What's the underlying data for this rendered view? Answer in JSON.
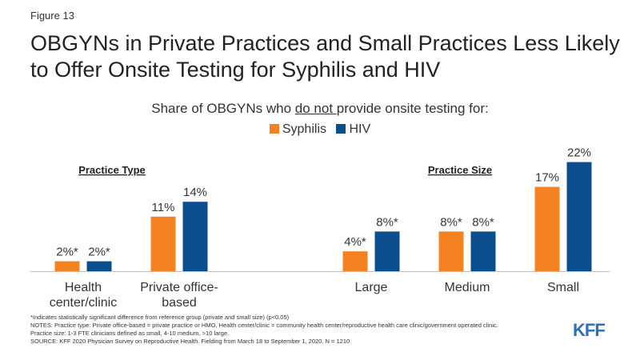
{
  "figure_label": "Figure 13",
  "title": "OBGYNs in Private Practices and Small Practices Less Likely to Offer Onsite Testing for Syphilis and HIV",
  "subtitle": {
    "before": "Share of OBGYNs who ",
    "underlined": "do not ",
    "after": "provide onsite testing for:"
  },
  "colors": {
    "syphilis": "#F58220",
    "hiv": "#0B4E8E"
  },
  "chart_data": {
    "type": "bar",
    "title": "",
    "xlabel": "",
    "ylabel": "",
    "ylim": [
      0,
      25
    ],
    "legend": "top-center",
    "grid": false,
    "groups": [
      {
        "name": "Practice Type",
        "categories": [
          "Health center/clinic",
          "Private office-based"
        ]
      },
      {
        "name": "Practice Size",
        "categories": [
          "Large",
          "Medium",
          "Small"
        ]
      }
    ],
    "categories": [
      "Health center/clinic",
      "Private office-based",
      "Large",
      "Medium",
      "Small"
    ],
    "category_lines": [
      [
        "Health",
        "center/clinic"
      ],
      [
        "Private office-",
        "based"
      ],
      [
        "Large"
      ],
      [
        "Medium"
      ],
      [
        "Small"
      ]
    ],
    "series": [
      {
        "name": "Syphilis",
        "values": [
          2,
          11,
          4,
          8,
          17
        ],
        "labels": [
          "2%*",
          "11%",
          "4%*",
          "8%*",
          "17%"
        ]
      },
      {
        "name": "HIV",
        "values": [
          2,
          14,
          8,
          8,
          22
        ],
        "labels": [
          "2%*",
          "14%",
          "8%*",
          "8%*",
          "22%"
        ]
      }
    ]
  },
  "notes": [
    "*Indicates statistically significant difference from reference group (private and small size) (p<0.05)",
    "NOTES: Practice type: Private office-based = private practice or HMO, Health center/clinic = community health center/reproductive health care clinic/government operated clinic.",
    "Practice size: 1-3 FTE clinicians defined as small, 4-10 medium, >10 large.",
    "SOURCE: KFF 2020 Physician Survey on Reproductive Health. Fielding from March 18 to September 1, 2020. N = 1210"
  ],
  "logo_text": "KFF"
}
